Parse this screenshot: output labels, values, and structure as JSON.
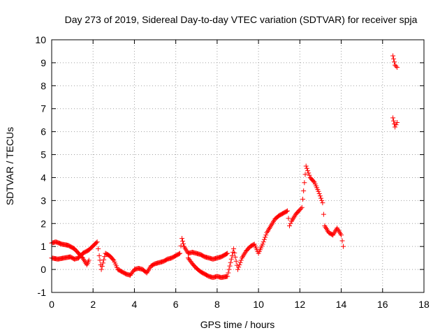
{
  "chart_data": {
    "type": "scatter",
    "title": "Day 273 of 2019, Sidereal Day-to-day VTEC variation (SDTVAR) for receiver spja",
    "xlabel": "GPS time / hours",
    "ylabel": "SDTVAR / TECUs",
    "xlim": [
      0,
      18
    ],
    "ylim": [
      -1,
      10
    ],
    "xticks": [
      0,
      2,
      4,
      6,
      8,
      10,
      12,
      14,
      16,
      18
    ],
    "yticks": [
      -1,
      0,
      1,
      2,
      3,
      4,
      5,
      6,
      7,
      8,
      9,
      10
    ],
    "grid": true,
    "marker": "plus",
    "series": [
      {
        "name": "SDTVAR",
        "color": "#ff0000",
        "x": [
          0.0,
          0.2,
          0.5,
          0.8,
          1.1,
          1.3,
          1.5,
          1.7,
          1.8,
          0.0,
          0.3,
          0.6,
          0.9,
          1.1,
          1.3,
          1.5,
          1.7,
          1.8,
          2.2,
          2.3,
          2.4,
          2.6,
          2.8,
          3.0,
          3.2,
          3.4,
          3.6,
          3.8,
          4.0,
          4.2,
          4.4,
          4.6,
          4.8,
          5.0,
          5.2,
          5.4,
          5.6,
          5.8,
          6.0,
          6.2,
          6.3,
          6.4,
          6.6,
          6.8,
          7.0,
          7.2,
          7.4,
          7.6,
          7.8,
          8.0,
          8.2,
          8.5,
          6.6,
          6.8,
          7.0,
          7.2,
          7.4,
          7.6,
          7.8,
          8.0,
          8.2,
          8.5,
          8.8,
          9.0,
          9.2,
          9.4,
          9.6,
          9.8,
          10.0,
          10.2,
          10.4,
          10.6,
          10.8,
          11.0,
          11.2,
          11.4,
          11.5,
          11.6,
          11.8,
          12.0,
          12.1,
          12.3,
          12.5,
          12.7,
          12.9,
          13.1,
          13.2,
          13.4,
          13.6,
          13.8,
          14.0,
          14.1,
          16.5,
          16.6,
          16.7,
          16.5,
          16.6,
          16.7
        ],
        "y": [
          1.15,
          1.2,
          1.1,
          1.05,
          0.9,
          0.7,
          0.5,
          0.2,
          0.4,
          0.5,
          0.45,
          0.5,
          0.55,
          0.45,
          0.5,
          0.7,
          0.8,
          0.85,
          1.2,
          0.6,
          0.0,
          0.7,
          0.6,
          0.4,
          0.0,
          -0.1,
          -0.2,
          -0.25,
          0.0,
          0.05,
          0.0,
          -0.15,
          0.15,
          0.25,
          0.3,
          0.35,
          0.45,
          0.5,
          0.6,
          0.7,
          1.35,
          1.0,
          0.7,
          0.75,
          0.7,
          0.65,
          0.55,
          0.5,
          0.45,
          0.5,
          0.55,
          0.7,
          0.5,
          0.25,
          0.05,
          -0.1,
          -0.2,
          -0.3,
          -0.35,
          -0.3,
          -0.35,
          -0.3,
          0.9,
          0.0,
          0.5,
          0.8,
          1.0,
          1.1,
          0.7,
          1.1,
          1.6,
          1.9,
          2.2,
          2.35,
          2.45,
          2.55,
          1.9,
          2.1,
          2.4,
          2.6,
          2.7,
          4.5,
          4.0,
          3.8,
          3.4,
          2.9,
          1.9,
          1.6,
          1.5,
          1.8,
          1.5,
          1.0,
          9.3,
          8.9,
          8.8,
          6.6,
          6.2,
          6.4
        ]
      }
    ]
  }
}
